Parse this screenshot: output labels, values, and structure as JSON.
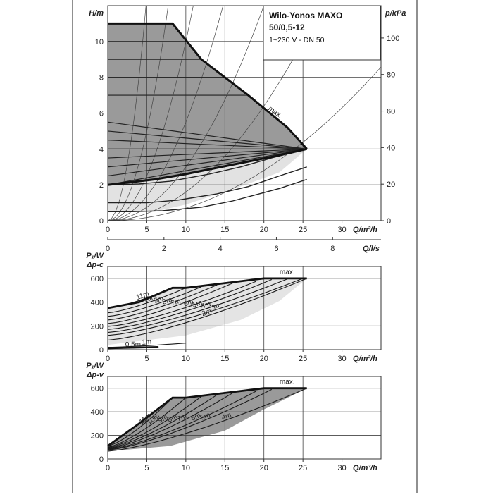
{
  "header": {
    "title_line1": "Wilo-Yonos MAXO",
    "title_line2": "50/0,5-12",
    "subtitle": "1~230 V - DN 50"
  },
  "chart_data": [
    {
      "type": "line",
      "panel": "head",
      "ylabel": "H/m",
      "ylabel_right": "p/kPa",
      "xlabel": "Q/m³/h",
      "xlabel_secondary": "Q/l/s",
      "xlim": [
        0,
        35
      ],
      "ylim": [
        0,
        12
      ],
      "xticks": [
        0,
        5,
        10,
        15,
        20,
        25,
        30
      ],
      "yticks": [
        0,
        2,
        4,
        6,
        8,
        10
      ],
      "yticks_right": [
        0,
        20,
        40,
        60,
        80,
        100
      ],
      "xticks_secondary": [
        0,
        2,
        4,
        6,
        8
      ],
      "grid": true,
      "max_label": "max.",
      "max_curve": {
        "x": [
          0,
          8.3,
          12,
          18,
          23,
          25.5
        ],
        "y": [
          11,
          11,
          9,
          7,
          5.2,
          4
        ]
      },
      "min_curve": {
        "x": [
          0,
          6,
          10,
          14,
          18,
          22,
          25.5
        ],
        "y": [
          2,
          2.3,
          2.6,
          2.95,
          3.3,
          3.65,
          4
        ]
      },
      "setpoint_lines_y0": [
        2,
        2.5,
        3,
        3.5,
        4,
        4.5,
        5,
        5.5
      ],
      "setpoint_lines_end": {
        "x": 25.5,
        "y": 4
      },
      "light_area": [
        {
          "x": 0,
          "y": 11
        },
        {
          "x": 8.3,
          "y": 11
        },
        {
          "x": 12,
          "y": 9
        },
        {
          "x": 18,
          "y": 7
        },
        {
          "x": 23,
          "y": 5.2
        },
        {
          "x": 25.5,
          "y": 4
        },
        {
          "x": 22,
          "y": 2.7
        },
        {
          "x": 17,
          "y": 1.9
        },
        {
          "x": 10,
          "y": 0.9
        },
        {
          "x": 6,
          "y": 0.5
        },
        {
          "x": 0,
          "y": 0.5
        }
      ],
      "low_curves": [
        {
          "x": [
            0,
            3,
            7,
            12,
            16,
            22,
            25.5
          ],
          "y": [
            0.5,
            0.5,
            0.55,
            0.75,
            1.1,
            1.8,
            2.3
          ]
        },
        {
          "x": [
            0,
            5,
            9,
            14,
            18,
            22,
            25.5
          ],
          "y": [
            1,
            1,
            1.15,
            1.5,
            1.9,
            2.5,
            3.0
          ]
        },
        {
          "x": [
            0,
            4,
            8,
            13,
            17,
            21,
            25.5
          ],
          "y": [
            2,
            2.05,
            2.2,
            2.6,
            3.0,
            3.5,
            4
          ]
        }
      ],
      "system_curves": [
        {
          "k": 0.007
        },
        {
          "k": 0.016
        },
        {
          "k": 0.03
        },
        {
          "k": 0.055
        },
        {
          "k": 0.1
        },
        {
          "k": 0.2
        },
        {
          "k": 0.5
        }
      ]
    },
    {
      "type": "line",
      "panel": "power-dp-c",
      "ylabel_line1": "P₁/W",
      "ylabel_line2": "Δp-c",
      "xlabel": "Q/m³/h",
      "xlim": [
        0,
        35
      ],
      "ylim": [
        0,
        700
      ],
      "xticks": [
        0,
        5,
        10,
        15,
        20,
        25,
        30
      ],
      "yticks": [
        0,
        200,
        400,
        600
      ],
      "grid": true,
      "max_label": "max.",
      "envelope": {
        "x": [
          0,
          4,
          8.3,
          10,
          15,
          20,
          25.5
        ],
        "y": [
          350,
          400,
          520,
          520,
          560,
          600,
          600
        ]
      },
      "series": [
        {
          "name": "11m",
          "x0": 0,
          "y0": 350,
          "x1": 8.3,
          "y1": 520
        },
        {
          "name": "10m",
          "x0": 0,
          "y0": 310,
          "x1": 10,
          "y1": 520
        },
        {
          "name": "9m",
          "x0": 0,
          "y0": 280,
          "x1": 12,
          "y1": 530
        },
        {
          "name": "8m",
          "x0": 0,
          "y0": 250,
          "x1": 14,
          "y1": 545
        },
        {
          "name": "7m",
          "x0": 0,
          "y0": 220,
          "x1": 16,
          "y1": 560
        },
        {
          "name": "6m",
          "x0": 0,
          "y0": 195,
          "x1": 19,
          "y1": 575
        },
        {
          "name": "5m",
          "x0": 0,
          "y0": 170,
          "x1": 21,
          "y1": 590
        },
        {
          "name": "4m",
          "x0": 0,
          "y0": 145,
          "x1": 23,
          "y1": 595
        },
        {
          "name": "3m",
          "x0": 0,
          "y0": 120,
          "x1": 25,
          "y1": 600
        },
        {
          "name": "2m",
          "x0": 0,
          "y0": 80,
          "x1": 25.5,
          "y1": 600
        },
        {
          "name": "1m",
          "x0": 0,
          "y0": 20,
          "x1": 10,
          "y1": 55
        },
        {
          "name": "0,5m",
          "x0": 0,
          "y0": 10,
          "x1": 6.5,
          "y1": 20
        }
      ]
    },
    {
      "type": "line",
      "panel": "power-dp-v",
      "ylabel_line1": "P₁/W",
      "ylabel_line2": "Δp-v",
      "xlabel": "Q/m³/h",
      "xlim": [
        0,
        35
      ],
      "ylim": [
        0,
        700
      ],
      "xticks": [
        0,
        5,
        10,
        15,
        20,
        25,
        30
      ],
      "yticks": [
        0,
        200,
        400,
        600
      ],
      "grid": true,
      "max_label": "max.",
      "envelope": {
        "x": [
          0,
          4,
          8.3,
          10,
          15,
          20,
          25.5
        ],
        "y": [
          110,
          300,
          520,
          520,
          560,
          600,
          600
        ]
      },
      "series": [
        {
          "name": "11m",
          "x0": 0,
          "y0": 110,
          "x1": 8.3,
          "y1": 520
        },
        {
          "name": "10m",
          "x0": 0,
          "y0": 100,
          "x1": 10,
          "y1": 520
        },
        {
          "name": "9m",
          "x0": 0,
          "y0": 95,
          "x1": 12,
          "y1": 530
        },
        {
          "name": "8m",
          "x0": 0,
          "y0": 90,
          "x1": 14,
          "y1": 545
        },
        {
          "name": "7m",
          "x0": 0,
          "y0": 85,
          "x1": 16,
          "y1": 560
        },
        {
          "name": "6m",
          "x0": 0,
          "y0": 80,
          "x1": 19,
          "y1": 575
        },
        {
          "name": "5m",
          "x0": 0,
          "y0": 75,
          "x1": 21,
          "y1": 590
        },
        {
          "name": "4m",
          "x0": 0,
          "y0": 65,
          "x1": 25.5,
          "y1": 600
        }
      ]
    }
  ]
}
